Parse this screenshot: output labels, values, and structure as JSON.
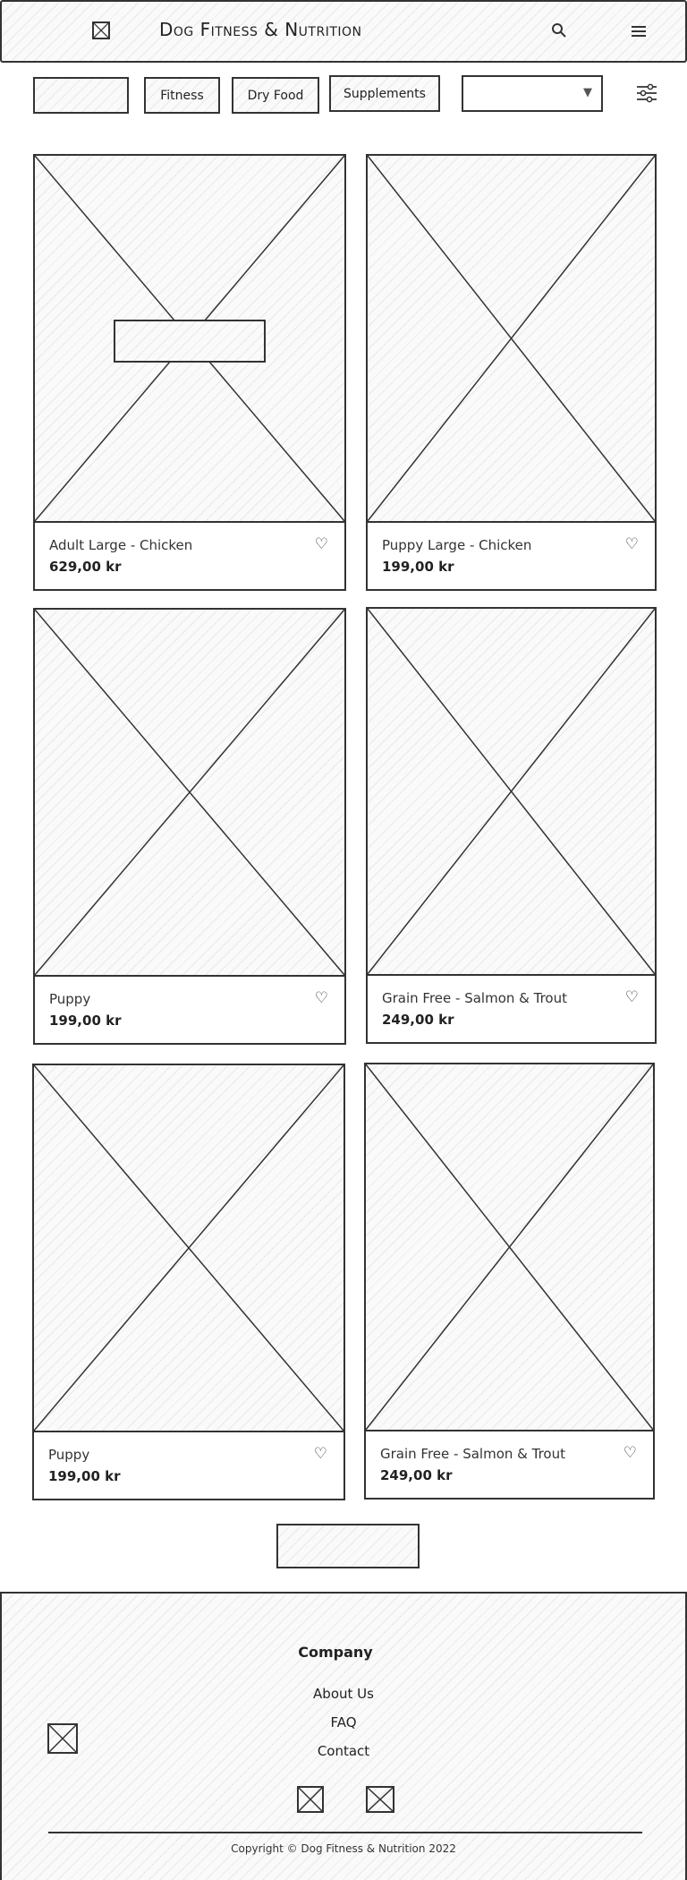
{
  "header": {
    "brand": "Dog Fitness & Nutrition",
    "logo_icon": "logo-placeholder-icon",
    "search_icon": "search-icon",
    "menu_icon": "hamburger-menu-icon"
  },
  "filters": {
    "chips": [
      {
        "label": ""
      },
      {
        "label": "Fitness"
      },
      {
        "label": "Dry Food"
      },
      {
        "label": "Supplements"
      }
    ],
    "sort_select_value": "",
    "sort_icon": "chevron-down-icon",
    "filter_icon": "sliders-icon"
  },
  "products": [
    {
      "name": "Adult Large - Chicken",
      "price": "629,00 kr"
    },
    {
      "name": "Puppy Large - Chicken",
      "price": "199,00 kr"
    },
    {
      "name": "Puppy",
      "price": "199,00 kr"
    },
    {
      "name": "Grain Free - Salmon & Trout",
      "price": "249,00 kr"
    },
    {
      "name": "Puppy",
      "price": "199,00 kr"
    },
    {
      "name": "Grain Free - Salmon & Trout",
      "price": "249,00 kr"
    }
  ],
  "load_more_label": "",
  "footer": {
    "heading": "Company",
    "links": [
      "About Us",
      "FAQ",
      "Contact"
    ],
    "copyright": "Copyright © Dog Fitness & Nutrition 2022"
  }
}
